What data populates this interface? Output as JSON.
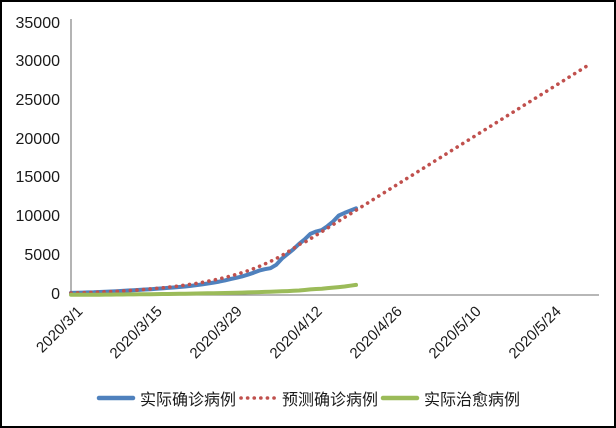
{
  "colors": {
    "actual_confirmed": "#4F81BD",
    "predicted_confirmed": "#C0504D",
    "actual_cured": "#9BBB59",
    "axis": "#8C8C8C",
    "border": "#000000",
    "background": "#FFFFFF"
  },
  "chart_data": {
    "type": "line",
    "title": "",
    "xlabel": "",
    "ylabel": "",
    "grid": false,
    "legend_position": "bottom",
    "ylim": [
      0,
      35000
    ],
    "ytick_step": 5000,
    "ytick_labels": [
      "35000",
      "30000",
      "25000",
      "20000",
      "15000",
      "10000",
      "5000",
      "0"
    ],
    "xtick_labels": [
      "2020/3/1",
      "2020/3/15",
      "2020/3/29",
      "2020/4/12",
      "2020/4/26",
      "2020/5/10",
      "2020/5/24"
    ],
    "dates": [
      "2020/3/1",
      "2020/3/2",
      "2020/3/3",
      "2020/3/4",
      "2020/3/5",
      "2020/3/6",
      "2020/3/7",
      "2020/3/8",
      "2020/3/9",
      "2020/3/10",
      "2020/3/11",
      "2020/3/12",
      "2020/3/13",
      "2020/3/14",
      "2020/3/15",
      "2020/3/16",
      "2020/3/17",
      "2020/3/18",
      "2020/3/19",
      "2020/3/20",
      "2020/3/21",
      "2020/3/22",
      "2020/3/23",
      "2020/3/24",
      "2020/3/25",
      "2020/3/26",
      "2020/3/27",
      "2020/3/28",
      "2020/3/29",
      "2020/3/30",
      "2020/3/31",
      "2020/4/1",
      "2020/4/2",
      "2020/4/3",
      "2020/4/4",
      "2020/4/5",
      "2020/4/6",
      "2020/4/7",
      "2020/4/8",
      "2020/4/9",
      "2020/4/10",
      "2020/4/11",
      "2020/4/12",
      "2020/4/13",
      "2020/4/14",
      "2020/4/15",
      "2020/4/16",
      "2020/4/17",
      "2020/4/18",
      "2020/4/19",
      "2020/4/20",
      "2020/4/21",
      "2020/4/22",
      "2020/4/23",
      "2020/4/24",
      "2020/4/25",
      "2020/4/26",
      "2020/4/27",
      "2020/4/28",
      "2020/4/29",
      "2020/4/30",
      "2020/5/1",
      "2020/5/2",
      "2020/5/3",
      "2020/5/4",
      "2020/5/5",
      "2020/5/6",
      "2020/5/7",
      "2020/5/8",
      "2020/5/9",
      "2020/5/10",
      "2020/5/11",
      "2020/5/12",
      "2020/5/13",
      "2020/5/14",
      "2020/5/15",
      "2020/5/16",
      "2020/5/17",
      "2020/5/18",
      "2020/5/19",
      "2020/5/20",
      "2020/5/21",
      "2020/5/22",
      "2020/5/23",
      "2020/5/24",
      "2020/5/25",
      "2020/5/26",
      "2020/5/27",
      "2020/5/28",
      "2020/5/29",
      "2020/5/30",
      "2020/5/31"
    ],
    "series": [
      {
        "name": "实际确诊病例",
        "color": "#4F81BD",
        "style": "solid",
        "values": [
          270,
          285,
          305,
          330,
          355,
          385,
          415,
          450,
          490,
          530,
          575,
          620,
          660,
          705,
          750,
          800,
          855,
          915,
          975,
          1035,
          1100,
          1180,
          1270,
          1370,
          1480,
          1600,
          1730,
          1890,
          2060,
          2220,
          2400,
          2620,
          2870,
          3150,
          3330,
          3460,
          3900,
          4700,
          5300,
          5900,
          6600,
          7200,
          7900,
          8200,
          8400,
          8900,
          9500,
          10280,
          10600,
          10900,
          11200
        ]
      },
      {
        "name": "预测确诊病例",
        "color": "#C0504D",
        "style": "dotted",
        "values": [
          250,
          271,
          294,
          319,
          346,
          376,
          408,
          442,
          480,
          521,
          565,
          613,
          665,
          722,
          783,
          850,
          922,
          1000,
          1085,
          1177,
          1277,
          1386,
          1504,
          1631,
          1770,
          1920,
          2083,
          2260,
          2452,
          2660,
          2886,
          3131,
          3397,
          3685,
          3998,
          4337,
          4705,
          5105,
          5538,
          6008,
          6518,
          6800,
          7260,
          7720,
          8180,
          8640,
          9100,
          9560,
          10020,
          10480,
          10940,
          11400,
          11860,
          12320,
          12780,
          13240,
          13700,
          14160,
          14620,
          15080,
          15540,
          16000,
          16460,
          16920,
          17380,
          17840,
          18300,
          18760,
          19220,
          19680,
          20140,
          20600,
          21060,
          21520,
          21980,
          22440,
          22900,
          23360,
          23820,
          24280,
          24740,
          25200,
          25660,
          26120,
          26580,
          27040,
          27500,
          27960,
          28420,
          28880,
          29340,
          29800
        ]
      },
      {
        "name": "实际治愈病例",
        "color": "#9BBB59",
        "style": "solid",
        "values": [
          25,
          28,
          32,
          36,
          40,
          45,
          50,
          56,
          62,
          68,
          75,
          82,
          90,
          98,
          106,
          115,
          124,
          134,
          144,
          155,
          166,
          178,
          190,
          203,
          216,
          230,
          245,
          260,
          276,
          293,
          310,
          330,
          350,
          372,
          395,
          420,
          447,
          476,
          507,
          540,
          576,
          646,
          720,
          770,
          820,
          885,
          950,
          1025,
          1100,
          1200,
          1300
        ]
      }
    ]
  }
}
